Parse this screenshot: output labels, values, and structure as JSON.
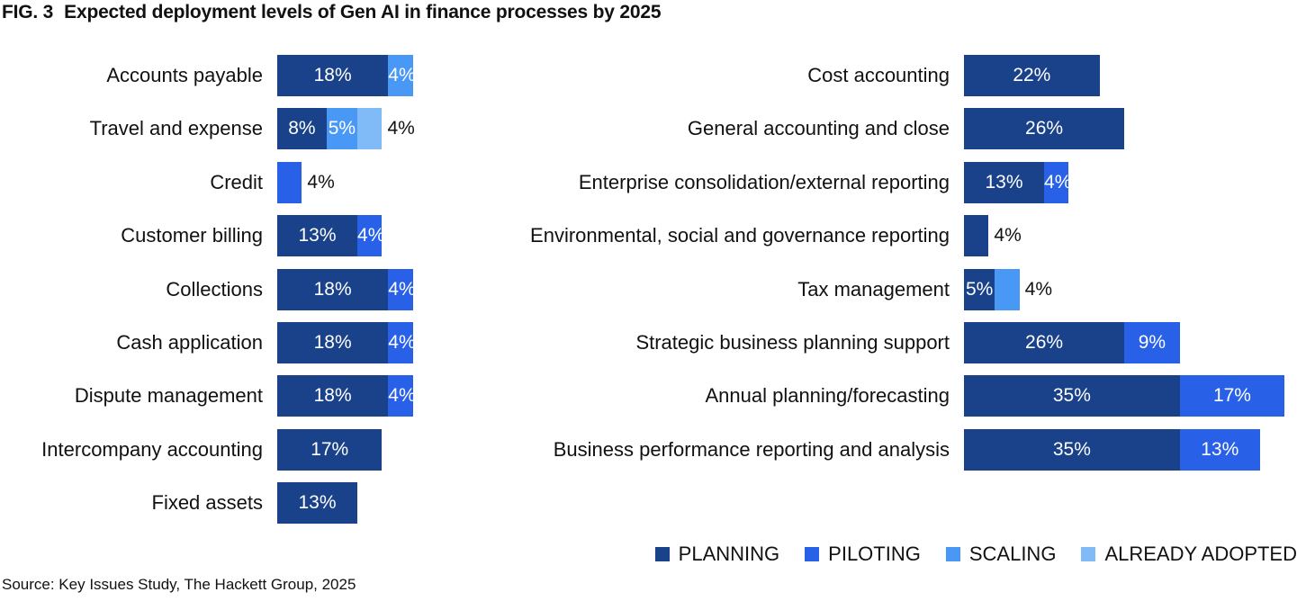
{
  "chart_data": {
    "type": "bar",
    "orientation": "horizontal",
    "stacked": true,
    "figure_label": "FIG. 3",
    "title": "Expected deployment levels of Gen AI in finance processes by 2025",
    "source": "Source: Key Issues Study, The Hackett Group, 2025",
    "unit": "%",
    "legend_position": "bottom-right",
    "grid": false,
    "series": [
      {
        "key": "planning",
        "name": "PLANNING",
        "color": "#1a428a"
      },
      {
        "key": "piloting",
        "name": "PILOTING",
        "color": "#2860e8"
      },
      {
        "key": "scaling",
        "name": "SCALING",
        "color": "#4a98f5"
      },
      {
        "key": "adopted",
        "name": "ALREADY ADOPTED",
        "color": "#80bbf8"
      }
    ],
    "panels": [
      {
        "rows": [
          {
            "category": "Accounts payable",
            "segments": [
              {
                "series": "planning",
                "value": 18
              },
              {
                "series": "scaling",
                "value": 4
              }
            ]
          },
          {
            "category": "Travel and expense",
            "segments": [
              {
                "series": "planning",
                "value": 8
              },
              {
                "series": "scaling",
                "value": 5
              },
              {
                "series": "adopted",
                "value": 4,
                "label_outside": true
              }
            ]
          },
          {
            "category": "Credit",
            "segments": [
              {
                "series": "piloting",
                "value": 4,
                "label_outside": true
              }
            ]
          },
          {
            "category": "Customer billing",
            "segments": [
              {
                "series": "planning",
                "value": 13
              },
              {
                "series": "piloting",
                "value": 4
              }
            ]
          },
          {
            "category": "Collections",
            "segments": [
              {
                "series": "planning",
                "value": 18
              },
              {
                "series": "piloting",
                "value": 4
              }
            ]
          },
          {
            "category": "Cash application",
            "segments": [
              {
                "series": "planning",
                "value": 18
              },
              {
                "series": "piloting",
                "value": 4
              }
            ]
          },
          {
            "category": "Dispute management",
            "segments": [
              {
                "series": "planning",
                "value": 18
              },
              {
                "series": "piloting",
                "value": 4
              }
            ]
          },
          {
            "category": "Intercompany accounting",
            "segments": [
              {
                "series": "planning",
                "value": 17
              }
            ]
          },
          {
            "category": "Fixed assets",
            "segments": [
              {
                "series": "planning",
                "value": 13
              }
            ]
          }
        ]
      },
      {
        "rows": [
          {
            "category": "Cost accounting",
            "segments": [
              {
                "series": "planning",
                "value": 22
              }
            ]
          },
          {
            "category": "General accounting and close",
            "segments": [
              {
                "series": "planning",
                "value": 26
              }
            ]
          },
          {
            "category": "Enterprise consolidation/external reporting",
            "segments": [
              {
                "series": "planning",
                "value": 13
              },
              {
                "series": "piloting",
                "value": 4
              }
            ]
          },
          {
            "category": "Environmental, social and governance reporting",
            "segments": [
              {
                "series": "planning",
                "value": 4,
                "label_outside": true
              }
            ]
          },
          {
            "category": "Tax management",
            "segments": [
              {
                "series": "planning",
                "value": 5
              },
              {
                "series": "scaling",
                "value": 4,
                "label_outside": true
              }
            ]
          },
          {
            "category": "Strategic business planning support",
            "segments": [
              {
                "series": "planning",
                "value": 26
              },
              {
                "series": "piloting",
                "value": 9
              }
            ]
          },
          {
            "category": "Annual planning/forecasting",
            "segments": [
              {
                "series": "planning",
                "value": 35
              },
              {
                "series": "piloting",
                "value": 17
              }
            ]
          },
          {
            "category": "Business performance reporting and analysis",
            "segments": [
              {
                "series": "planning",
                "value": 35
              },
              {
                "series": "piloting",
                "value": 13
              }
            ]
          }
        ]
      }
    ]
  }
}
